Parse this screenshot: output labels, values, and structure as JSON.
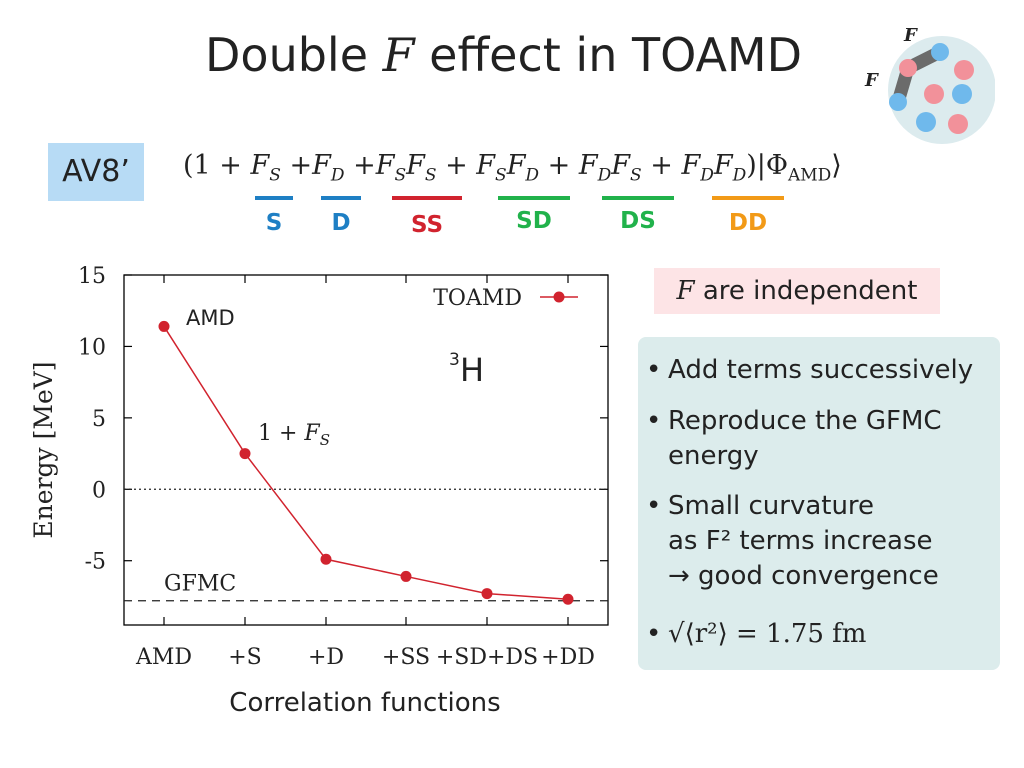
{
  "slide": {
    "title_pre": "Double",
    "title_var": "F",
    "title_post": "effect in TOAMD",
    "interaction_label": "AV8’",
    "formula": {
      "open": "(1 + ",
      "f": "F",
      "plus": "+",
      "ket": ")|Φ",
      "ket_sub": "AMD",
      "ket_close": "⟩",
      "sub_s": "S",
      "sub_d": "D"
    },
    "terms": [
      {
        "label": "S",
        "color": "#1e7fc4"
      },
      {
        "label": "D",
        "color": "#1e7fc4"
      },
      {
        "label": "SS",
        "color": "#d1232e"
      },
      {
        "label": "SD",
        "color": "#21b24b"
      },
      {
        "label": "DS",
        "color": "#21b24b"
      },
      {
        "label": "DD",
        "color": "#f29a17"
      }
    ],
    "logo": {
      "f_label": "F"
    },
    "note_var": "F",
    "note_text": "are independent",
    "bullets": [
      {
        "marker": "•",
        "lines": [
          "Add terms successively"
        ]
      },
      {
        "marker": "•",
        "lines": [
          "Reproduce the GFMC",
          "energy"
        ]
      },
      {
        "marker": "•",
        "lines": [
          "Small curvature",
          "as F² terms increase",
          "→ good convergence"
        ]
      },
      {
        "marker": "•",
        "lines": [
          "√⟨r²⟩ = 1.75 fm"
        ]
      }
    ],
    "x_axis_title": "Correlation functions"
  },
  "chart_data": {
    "type": "line",
    "categories": [
      "AMD",
      "+S",
      "+D",
      "+SS",
      "+SD+DS",
      "+DD"
    ],
    "series": [
      {
        "name": "TOAMD",
        "values": [
          11.4,
          2.5,
          -4.9,
          -6.1,
          -7.3,
          -7.7
        ],
        "color": "#d1232e"
      }
    ],
    "ylabel": "Energy [MeV]",
    "ylim": [
      -9.5,
      15
    ],
    "yticks": [
      15,
      10,
      5,
      0,
      -5
    ],
    "grid": false,
    "legend": "top-right",
    "reference_lines": [
      {
        "label": "GFMC",
        "value": -7.8,
        "style": "dashed"
      },
      {
        "label": "",
        "value": 0,
        "style": "dotted"
      }
    ],
    "annotations": [
      {
        "text": "AMD",
        "category": "AMD"
      },
      {
        "text": "1 + F_S",
        "category": "+S"
      }
    ],
    "nucleus_label": {
      "mass": "3",
      "symbol": "H"
    }
  }
}
